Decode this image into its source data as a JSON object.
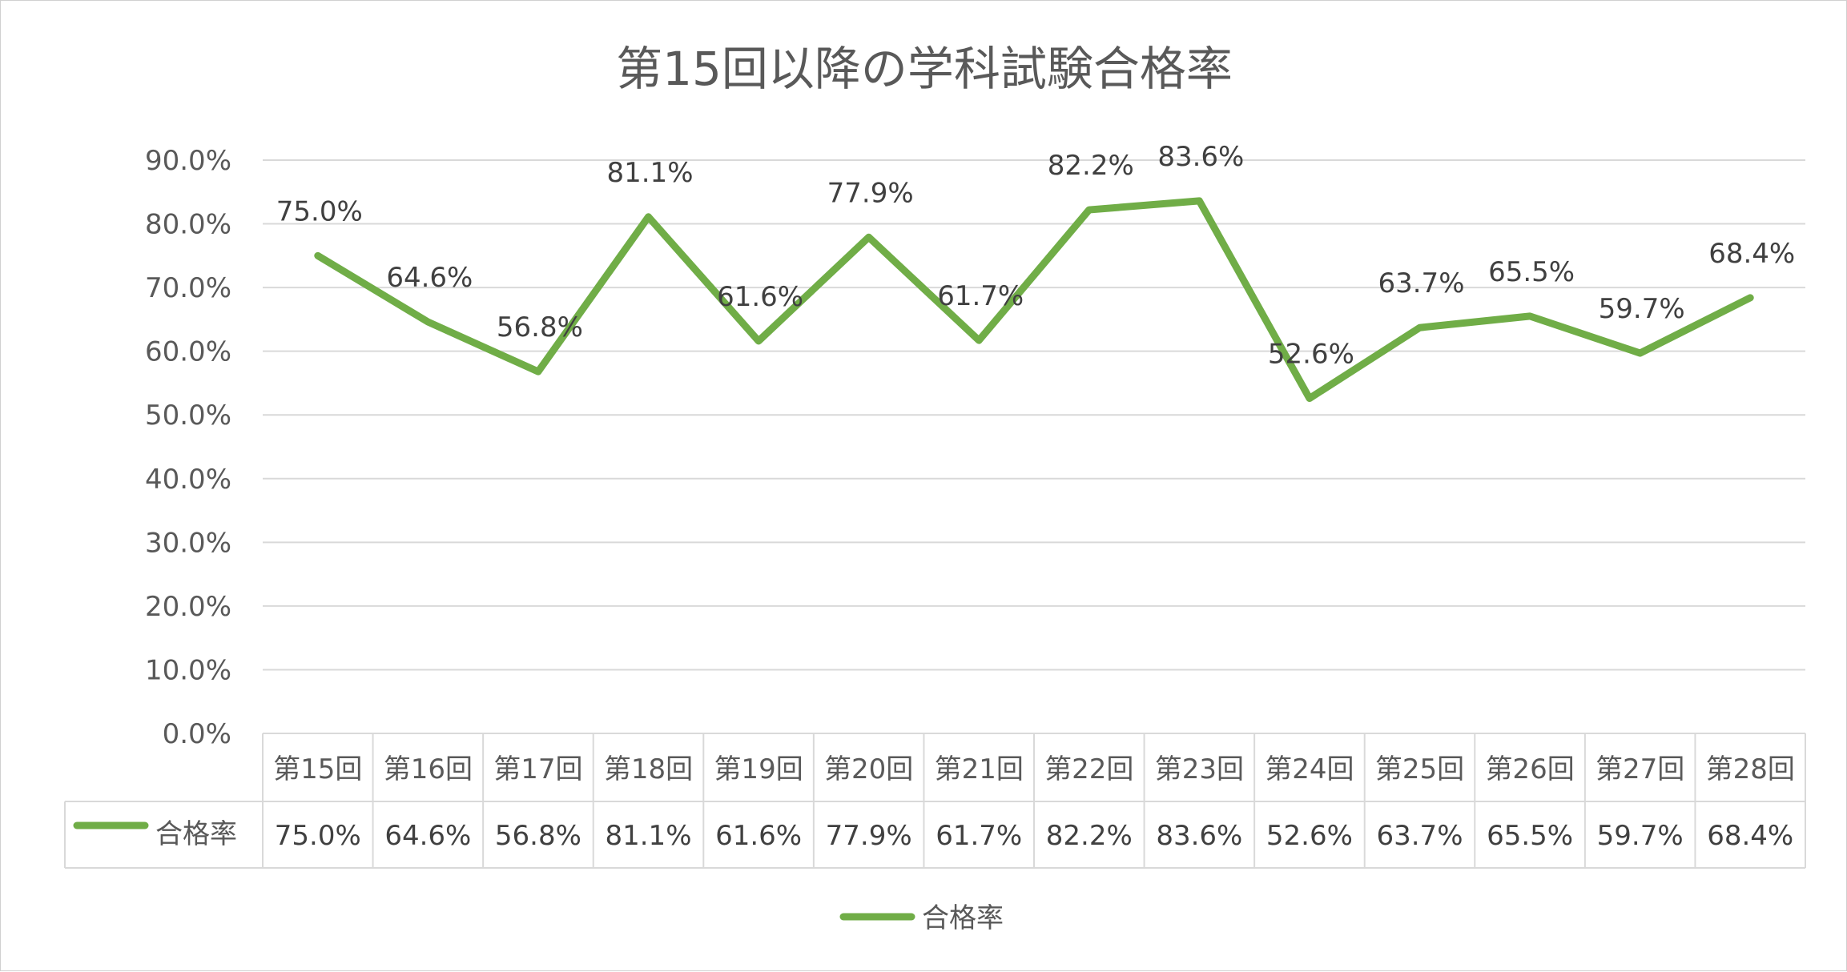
{
  "chart_data": {
    "type": "line",
    "title": "第15回以降の学科試験合格率",
    "categories": [
      "第15回",
      "第16回",
      "第17回",
      "第18回",
      "第19回",
      "第20回",
      "第21回",
      "第22回",
      "第23回",
      "第24回",
      "第25回",
      "第26回",
      "第27回",
      "第28回"
    ],
    "series": [
      {
        "name": "合格率",
        "values": [
          75.0,
          64.6,
          56.8,
          81.1,
          61.6,
          77.9,
          61.7,
          82.2,
          83.6,
          52.6,
          63.7,
          65.5,
          59.7,
          68.4
        ],
        "labels": [
          "75.0%",
          "64.6%",
          "56.8%",
          "81.1%",
          "61.6%",
          "77.9%",
          "61.7%",
          "82.2%",
          "83.6%",
          "52.6%",
          "63.7%",
          "65.5%",
          "59.7%",
          "68.4%"
        ],
        "color": "#70ad47"
      }
    ],
    "ylim": [
      0,
      90
    ],
    "yticks": [
      "0.0%",
      "10.0%",
      "20.0%",
      "30.0%",
      "40.0%",
      "50.0%",
      "60.0%",
      "70.0%",
      "80.0%",
      "90.0%"
    ],
    "grid": true,
    "data_table": true,
    "legend_position": "bottom"
  }
}
